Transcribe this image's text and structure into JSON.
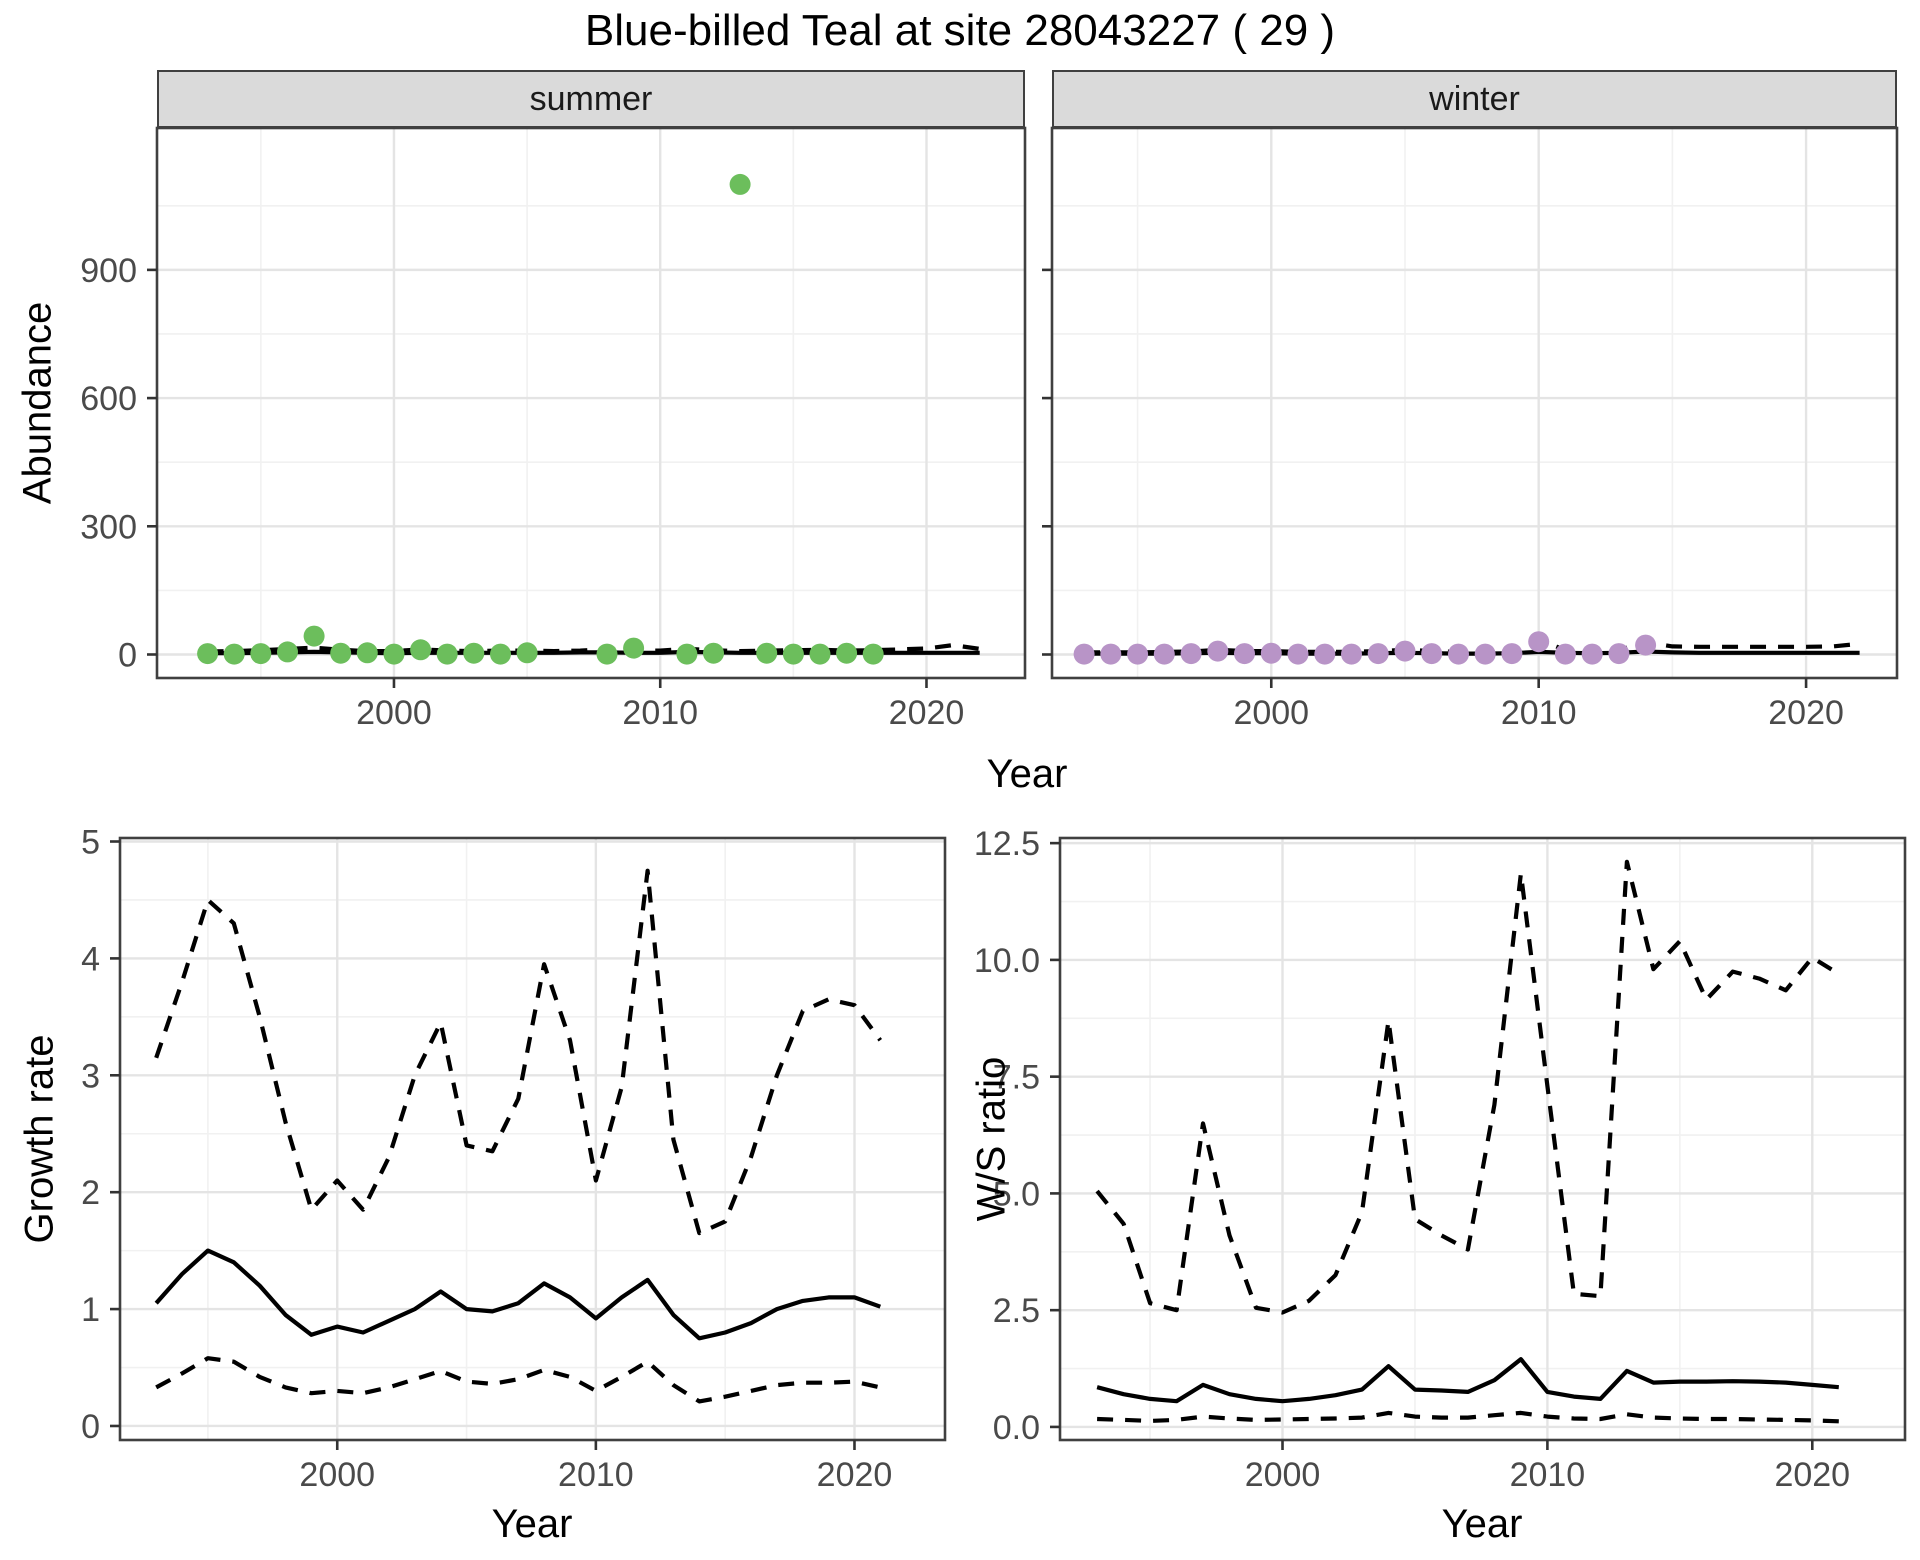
{
  "title": "Blue-billed Teal at site 28043227 ( 29 )",
  "facets": {
    "summer": "summer",
    "winter": "winter"
  },
  "axis_labels": {
    "x": "Year",
    "abundance": "Abundance",
    "growth": "Growth rate",
    "ws": "W/S ratio"
  },
  "colors": {
    "summer_point": "#6cbe5c",
    "winter_point": "#b894c7",
    "line": "#000000",
    "grid_major": "#e4e4e4",
    "grid_minor": "#f1f1f1",
    "panel_border": "#404040",
    "strip_bg": "#dadada",
    "tick_text": "#4a4a4a",
    "tick_mark": "#333333"
  },
  "chart_data": {
    "type": "multi-panel line + scatter",
    "title": "Blue-billed Teal at site 28043227 ( 29 )",
    "legend": "none",
    "grid": "on (major + minor, light gray on white, dark panel border)",
    "panels": [
      {
        "id": "abundance-summer",
        "facet_label": "summer",
        "xlabel": "Year",
        "ylabel": "Abundance",
        "xlim": [
          1991.1,
          2023.7
        ],
        "ylim": [
          -55,
          1232
        ],
        "xticks": [
          2000,
          2010,
          2020
        ],
        "xtick_labels": [
          "2000",
          "2010",
          "2020"
        ],
        "xminor": [
          1995,
          2005,
          2015
        ],
        "yticks": [
          0,
          300,
          600,
          900
        ],
        "ytick_labels": [
          "0",
          "300",
          "600",
          "900"
        ],
        "yminor": [
          150,
          450,
          750,
          1050
        ],
        "show_y_labels": true,
        "points": {
          "color_key": "summer_point",
          "x": [
            1993,
            1994,
            1995,
            1996,
            1997,
            1998,
            1999,
            2000,
            2001,
            2002,
            2003,
            2004,
            2005,
            2008,
            2009,
            2011,
            2012,
            2013,
            2014,
            2015,
            2016,
            2017,
            2018
          ],
          "y": [
            2,
            1,
            2,
            6,
            43,
            3,
            4,
            1,
            11,
            1,
            3,
            1,
            4,
            1,
            15,
            1,
            3,
            1100,
            3,
            1,
            1,
            3,
            1
          ]
        },
        "lines": [
          {
            "name": "fit-median",
            "style": "solid",
            "x": [
              1993,
              1994,
              1995,
              1996,
              1997,
              1998,
              1999,
              2000,
              2001,
              2002,
              2003,
              2004,
              2005,
              2006,
              2007,
              2008,
              2009,
              2010,
              2011,
              2012,
              2013,
              2014,
              2015,
              2016,
              2017,
              2018,
              2019,
              2020,
              2021,
              2022
            ],
            "y": [
              3,
              3,
              4,
              5,
              6,
              5,
              4,
              3,
              4,
              4,
              4,
              4,
              4,
              4,
              5,
              5,
              4,
              4,
              6,
              5,
              4,
              4,
              4,
              4,
              4,
              4,
              4,
              4,
              4,
              4
            ]
          },
          {
            "name": "ci-upper",
            "style": "dashed",
            "x": [
              1993,
              1994,
              1995,
              1996,
              1997,
              1998,
              1999,
              2000,
              2001,
              2002,
              2003,
              2004,
              2005,
              2006,
              2007,
              2008,
              2009,
              2010,
              2011,
              2012,
              2013,
              2014,
              2015,
              2016,
              2017,
              2018,
              2019,
              2020,
              2021,
              2022
            ],
            "y": [
              7,
              8,
              10,
              13,
              16,
              11,
              8,
              8,
              12,
              9,
              8,
              9,
              9,
              8,
              9,
              12,
              9,
              9,
              13,
              10,
              8,
              9,
              10,
              11,
              9,
              10,
              12,
              14,
              22,
              13
            ]
          }
        ]
      },
      {
        "id": "abundance-winter",
        "facet_label": "winter",
        "xlabel": "Year",
        "ylabel": "Abundance",
        "xlim": [
          1991.8,
          2023.4
        ],
        "ylim": [
          -55,
          1232
        ],
        "xticks": [
          2000,
          2010,
          2020
        ],
        "xtick_labels": [
          "2000",
          "2010",
          "2020"
        ],
        "xminor": [
          1995,
          2005,
          2015
        ],
        "yticks": [
          0,
          300,
          600,
          900
        ],
        "ytick_labels": [
          "0",
          "300",
          "600",
          "900"
        ],
        "yminor": [
          150,
          450,
          750,
          1050
        ],
        "show_y_labels": false,
        "points": {
          "color_key": "winter_point",
          "x": [
            1993,
            1994,
            1995,
            1996,
            1997,
            1998,
            1999,
            2000,
            2001,
            2002,
            2003,
            2004,
            2005,
            2006,
            2007,
            2008,
            2009,
            2010,
            2011,
            2012,
            2013,
            2014
          ],
          "y": [
            1,
            1,
            1,
            1,
            2,
            8,
            2,
            3,
            1,
            1,
            1,
            2,
            8,
            2,
            1,
            1,
            2,
            30,
            1,
            1,
            2,
            22
          ]
        },
        "lines": [
          {
            "name": "fit-median",
            "style": "solid",
            "x": [
              1993,
              1994,
              1995,
              1996,
              1997,
              1998,
              1999,
              2000,
              2001,
              2002,
              2003,
              2004,
              2005,
              2006,
              2007,
              2008,
              2009,
              2010,
              2011,
              2012,
              2013,
              2014,
              2015,
              2016,
              2017,
              2018,
              2019,
              2020,
              2021,
              2022
            ],
            "y": [
              2,
              2,
              2,
              2,
              3,
              4,
              3,
              3,
              2,
              2,
              2,
              3,
              4,
              3,
              2,
              2,
              3,
              6,
              4,
              3,
              4,
              7,
              5,
              4,
              4,
              4,
              4,
              4,
              4,
              4
            ]
          },
          {
            "name": "ci-upper",
            "style": "dashed",
            "x": [
              1993,
              1994,
              1995,
              1996,
              1997,
              1998,
              1999,
              2000,
              2001,
              2002,
              2003,
              2004,
              2005,
              2006,
              2007,
              2008,
              2009,
              2010,
              2011,
              2012,
              2013,
              2014,
              2015,
              2016,
              2017,
              2018,
              2019,
              2020,
              2021,
              2022
            ],
            "y": [
              5,
              5,
              5,
              6,
              7,
              11,
              8,
              8,
              6,
              6,
              6,
              8,
              11,
              8,
              6,
              6,
              9,
              35,
              10,
              8,
              10,
              29,
              19,
              18,
              18,
              18,
              18,
              18,
              19,
              25
            ]
          }
        ]
      },
      {
        "id": "growth-rate",
        "facet_label": "",
        "xlabel": "Year",
        "ylabel": "Growth rate",
        "xlim": [
          1991.6,
          2023.5
        ],
        "ylim": [
          -0.12,
          5.03
        ],
        "xticks": [
          2000,
          2010,
          2020
        ],
        "xtick_labels": [
          "2000",
          "2010",
          "2020"
        ],
        "xminor": [
          1995,
          2005,
          2015
        ],
        "yticks": [
          0,
          1,
          2,
          3,
          4,
          5
        ],
        "ytick_labels": [
          "0",
          "1",
          "2",
          "3",
          "4",
          "5"
        ],
        "yminor": [
          0.5,
          1.5,
          2.5,
          3.5,
          4.5
        ],
        "show_y_labels": true,
        "points": null,
        "lines": [
          {
            "name": "median",
            "style": "solid",
            "x": [
              1993,
              1994,
              1995,
              1996,
              1997,
              1998,
              1999,
              2000,
              2001,
              2002,
              2003,
              2004,
              2005,
              2006,
              2007,
              2008,
              2009,
              2010,
              2011,
              2012,
              2013,
              2014,
              2015,
              2016,
              2017,
              2018,
              2019,
              2020,
              2021
            ],
            "y": [
              1.05,
              1.3,
              1.5,
              1.4,
              1.2,
              0.95,
              0.78,
              0.85,
              0.8,
              0.9,
              1.0,
              1.15,
              1.0,
              0.98,
              1.05,
              1.22,
              1.1,
              0.92,
              1.1,
              1.25,
              0.95,
              0.75,
              0.8,
              0.88,
              1.0,
              1.07,
              1.1,
              1.1,
              1.02
            ]
          },
          {
            "name": "ci-upper",
            "style": "dashed",
            "x": [
              1993,
              1994,
              1995,
              1996,
              1997,
              1998,
              1999,
              2000,
              2001,
              2002,
              2003,
              2004,
              2005,
              2006,
              2007,
              2008,
              2009,
              2010,
              2011,
              2012,
              2013,
              2014,
              2015,
              2016,
              2017,
              2018,
              2019,
              2020,
              2021
            ],
            "y": [
              3.15,
              3.8,
              4.5,
              4.3,
              3.5,
              2.6,
              1.85,
              2.1,
              1.85,
              2.3,
              3.0,
              3.45,
              2.4,
              2.35,
              2.8,
              3.95,
              3.3,
              2.1,
              2.9,
              4.75,
              2.45,
              1.65,
              1.75,
              2.3,
              3.0,
              3.55,
              3.65,
              3.6,
              3.3
            ]
          },
          {
            "name": "ci-lower",
            "style": "dashed",
            "x": [
              1993,
              1994,
              1995,
              1996,
              1997,
              1998,
              1999,
              2000,
              2001,
              2002,
              2003,
              2004,
              2005,
              2006,
              2007,
              2008,
              2009,
              2010,
              2011,
              2012,
              2013,
              2014,
              2015,
              2016,
              2017,
              2018,
              2019,
              2020,
              2021
            ],
            "y": [
              0.33,
              0.45,
              0.58,
              0.55,
              0.42,
              0.33,
              0.28,
              0.3,
              0.28,
              0.33,
              0.4,
              0.47,
              0.38,
              0.36,
              0.4,
              0.48,
              0.42,
              0.3,
              0.42,
              0.55,
              0.35,
              0.21,
              0.25,
              0.3,
              0.35,
              0.37,
              0.37,
              0.38,
              0.33
            ]
          }
        ]
      },
      {
        "id": "ws-ratio",
        "facet_label": "",
        "xlabel": "Year",
        "ylabel": "W/S ratio",
        "xlim": [
          1991.6,
          2023.5
        ],
        "ylim": [
          -0.28,
          12.61
        ],
        "xticks": [
          2000,
          2010,
          2020
        ],
        "xtick_labels": [
          "2000",
          "2010",
          "2020"
        ],
        "xminor": [
          1995,
          2005,
          2015
        ],
        "yticks": [
          0,
          2.5,
          5,
          7.5,
          10,
          12.5
        ],
        "ytick_labels": [
          "0.0",
          "2.5",
          "5.0",
          "7.5",
          "10.0",
          "12.5"
        ],
        "yminor": [
          1.25,
          3.75,
          6.25,
          8.75,
          11.25
        ],
        "show_y_labels": true,
        "points": null,
        "lines": [
          {
            "name": "median",
            "style": "solid",
            "x": [
              1993,
              1994,
              1995,
              1996,
              1997,
              1998,
              1999,
              2000,
              2001,
              2002,
              2003,
              2004,
              2005,
              2006,
              2007,
              2008,
              2009,
              2010,
              2011,
              2012,
              2013,
              2014,
              2015,
              2016,
              2017,
              2018,
              2019,
              2020,
              2021
            ],
            "y": [
              0.85,
              0.7,
              0.6,
              0.55,
              0.9,
              0.7,
              0.6,
              0.55,
              0.6,
              0.68,
              0.8,
              1.3,
              0.8,
              0.78,
              0.75,
              1.0,
              1.45,
              0.75,
              0.65,
              0.6,
              1.2,
              0.95,
              0.97,
              0.97,
              0.98,
              0.97,
              0.95,
              0.9,
              0.85
            ]
          },
          {
            "name": "ci-upper",
            "style": "dashed",
            "x": [
              1993,
              1994,
              1995,
              1996,
              1997,
              1998,
              1999,
              2000,
              2001,
              2002,
              2003,
              2004,
              2005,
              2006,
              2007,
              2008,
              2009,
              2010,
              2011,
              2012,
              2013,
              2014,
              2015,
              2016,
              2017,
              2018,
              2019,
              2020,
              2021
            ],
            "y": [
              5.05,
              4.35,
              2.65,
              2.5,
              6.5,
              4.1,
              2.55,
              2.45,
              2.7,
              3.25,
              4.6,
              8.7,
              4.45,
              4.1,
              3.8,
              6.9,
              11.85,
              7.3,
              2.85,
              2.8,
              12.1,
              9.8,
              10.4,
              9.15,
              9.75,
              9.6,
              9.35,
              10.05,
              9.7
            ]
          },
          {
            "name": "ci-lower",
            "style": "dashed",
            "x": [
              1993,
              1994,
              1995,
              1996,
              1997,
              1998,
              1999,
              2000,
              2001,
              2002,
              2003,
              2004,
              2005,
              2006,
              2007,
              2008,
              2009,
              2010,
              2011,
              2012,
              2013,
              2014,
              2015,
              2016,
              2017,
              2018,
              2019,
              2020,
              2021
            ],
            "y": [
              0.17,
              0.15,
              0.13,
              0.15,
              0.22,
              0.18,
              0.15,
              0.16,
              0.17,
              0.18,
              0.2,
              0.3,
              0.22,
              0.2,
              0.2,
              0.25,
              0.3,
              0.22,
              0.18,
              0.17,
              0.27,
              0.2,
              0.18,
              0.17,
              0.17,
              0.16,
              0.15,
              0.14,
              0.12
            ]
          }
        ]
      }
    ]
  }
}
